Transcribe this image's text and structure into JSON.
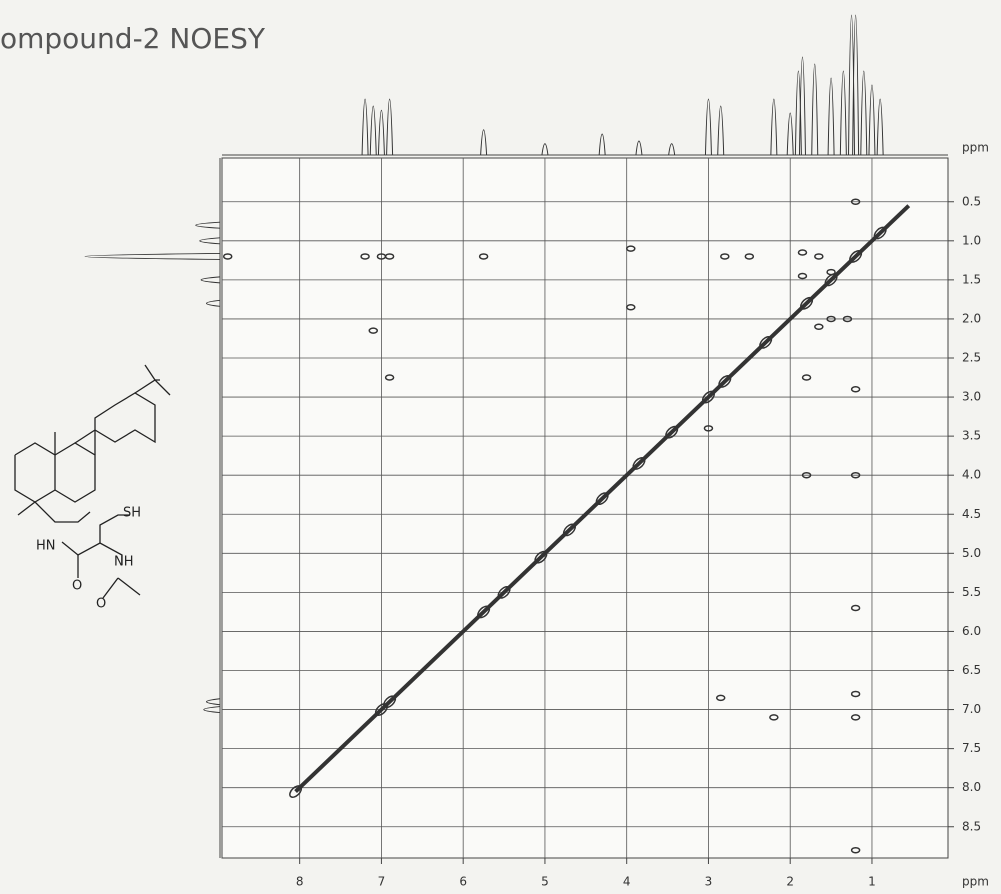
{
  "chart_data": {
    "type": "noesy",
    "title": "ompound-2 NOESY",
    "x_label": "ppm",
    "y_label": "ppm",
    "xlim": [
      8.95,
      0.07
    ],
    "ylim": [
      -0.06,
      8.9
    ],
    "xticks": [
      8,
      7,
      6,
      5,
      4,
      3,
      2,
      1
    ],
    "yticks": [
      0.5,
      {
        "value": 1,
        "label": "1.0"
      },
      1.5,
      {
        "value": 2,
        "label": "2.0"
      },
      2.5,
      {
        "value": 3,
        "label": "3.0"
      },
      3.5,
      {
        "value": 4,
        "label": "4.0"
      },
      4.5,
      {
        "value": 5,
        "label": "5.0"
      },
      5.5,
      {
        "value": 6,
        "label": "6.0"
      },
      6.5,
      {
        "value": 7,
        "label": "7.0"
      },
      7.5,
      {
        "value": 8,
        "label": "8.0"
      },
      8.5
    ],
    "grid": true,
    "color": "#333333",
    "diagonal": {
      "x": [
        8.05,
        0.55
      ],
      "values": [
        8.05,
        0.55
      ]
    },
    "x": [
      8.05,
      7.0,
      6.9,
      5.75,
      5.5,
      5.05,
      4.7,
      4.3,
      3.85,
      3.45,
      3.0,
      2.8,
      2.3,
      1.8,
      1.5,
      1.2,
      0.9,
      8.88,
      7.2,
      7.0,
      6.9,
      5.75,
      3.95,
      3.95,
      7.1,
      6.9,
      2.8,
      1.85,
      1.65,
      1.85,
      1.5,
      1.5,
      1.65,
      1.3,
      1.8,
      1.2,
      1.8,
      1.2,
      1.2,
      2.85,
      2.2,
      1.2,
      1.2,
      3.0,
      1.2,
      1.2,
      2.5
    ],
    "values": [
      8.05,
      7.0,
      6.9,
      5.75,
      5.5,
      5.05,
      4.7,
      4.3,
      3.85,
      3.45,
      3.0,
      2.8,
      2.3,
      1.8,
      1.5,
      1.2,
      0.9,
      1.2,
      1.2,
      1.2,
      1.2,
      1.2,
      1.1,
      1.85,
      2.15,
      2.75,
      1.2,
      1.15,
      1.2,
      1.45,
      1.4,
      2.0,
      2.1,
      2.0,
      2.75,
      2.9,
      4.0,
      4.0,
      5.7,
      6.85,
      7.1,
      6.8,
      7.1,
      3.4,
      0.5,
      8.8,
      1.2
    ],
    "projection_f2": {
      "x": [
        7.2,
        7.1,
        7.0,
        6.9,
        5.75,
        5.0,
        4.3,
        3.85,
        3.45,
        3.0,
        2.85,
        2.2,
        2.0,
        1.9,
        1.85,
        1.7,
        1.5,
        1.35,
        1.25,
        1.2,
        1.1,
        1.0,
        0.9
      ],
      "values": [
        40,
        35,
        32,
        40,
        18,
        8,
        15,
        10,
        8,
        40,
        35,
        40,
        30,
        60,
        70,
        65,
        55,
        60,
        100,
        100,
        60,
        50,
        40
      ]
    },
    "projection_f1": {
      "y": [
        0.8,
        1.0,
        1.2,
        1.5,
        1.8,
        6.9,
        7.0
      ],
      "values": [
        18,
        15,
        100,
        14,
        10,
        10,
        12
      ]
    },
    "structure_labels": [
      "SH",
      "HN",
      "NH",
      "O",
      "O"
    ]
  }
}
